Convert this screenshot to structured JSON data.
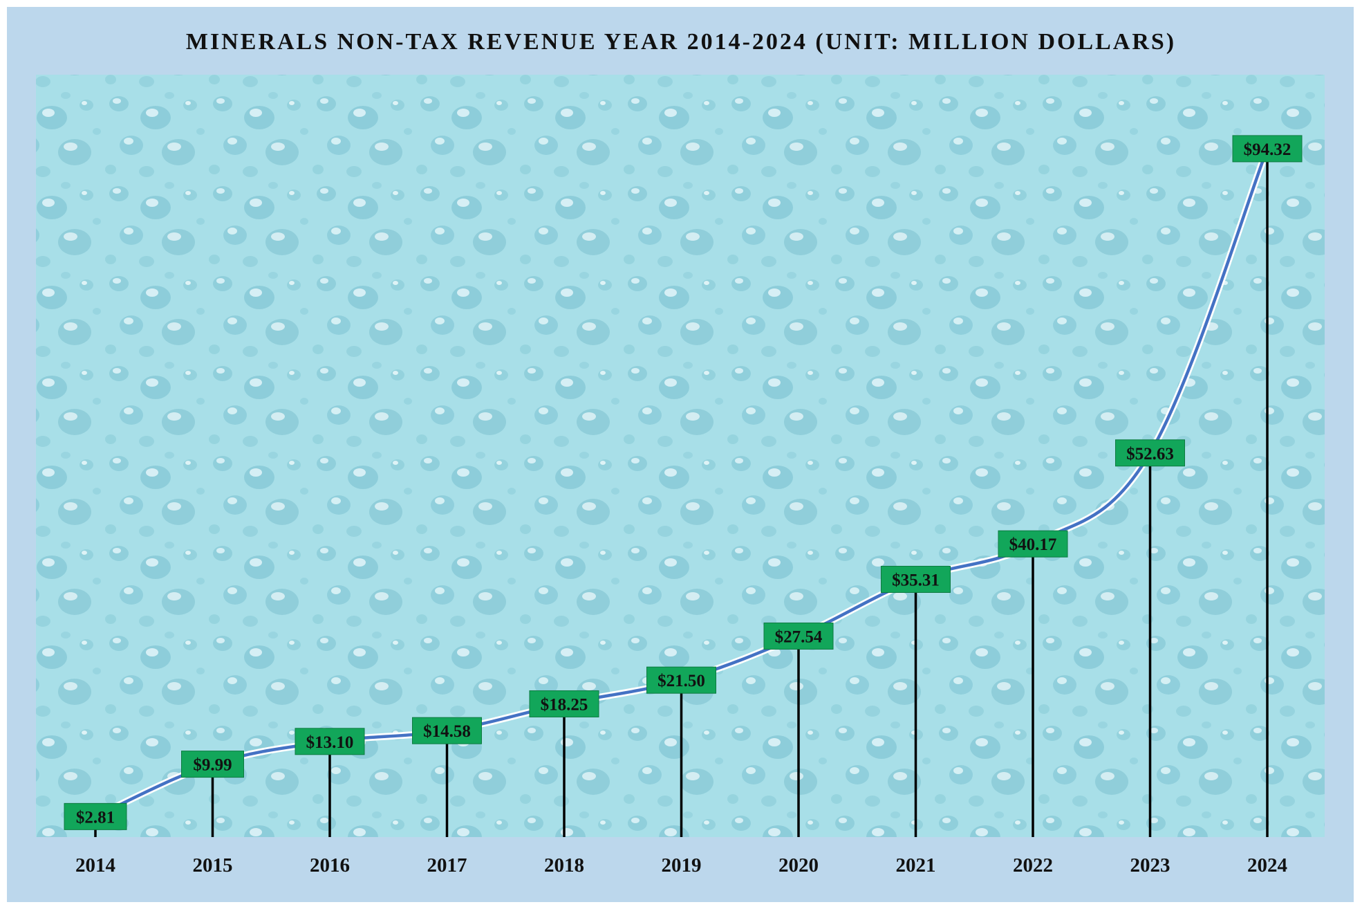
{
  "chart_data": {
    "type": "line",
    "title": "MINERALS NON-TAX REVENUE YEAR 2014-2024 (UNIT: MILLION DOLLARS)",
    "xlabel": "",
    "ylabel": "",
    "categories": [
      "2014",
      "2015",
      "2016",
      "2017",
      "2018",
      "2019",
      "2020",
      "2021",
      "2022",
      "2023",
      "2024"
    ],
    "values": [
      2.81,
      9.99,
      13.1,
      14.58,
      18.25,
      21.5,
      27.54,
      35.31,
      40.17,
      52.63,
      94.32
    ],
    "data_labels": [
      "$2.81",
      "$9.99",
      "$13.10",
      "$14.58",
      "$18.25",
      "$21.50",
      "$27.54",
      "$35.31",
      "$40.17",
      "$52.63",
      "$94.32"
    ],
    "ylim": [
      0,
      100
    ],
    "grid": false,
    "legend": "none",
    "colors": {
      "line": "#4472c4",
      "line_halo": "#ffffff",
      "label_box": "#12a65a",
      "label_border": "#0d7a40",
      "drop_line": "#000000",
      "frame": "#bcd7ec",
      "plot_background": "#a5dde6"
    }
  }
}
